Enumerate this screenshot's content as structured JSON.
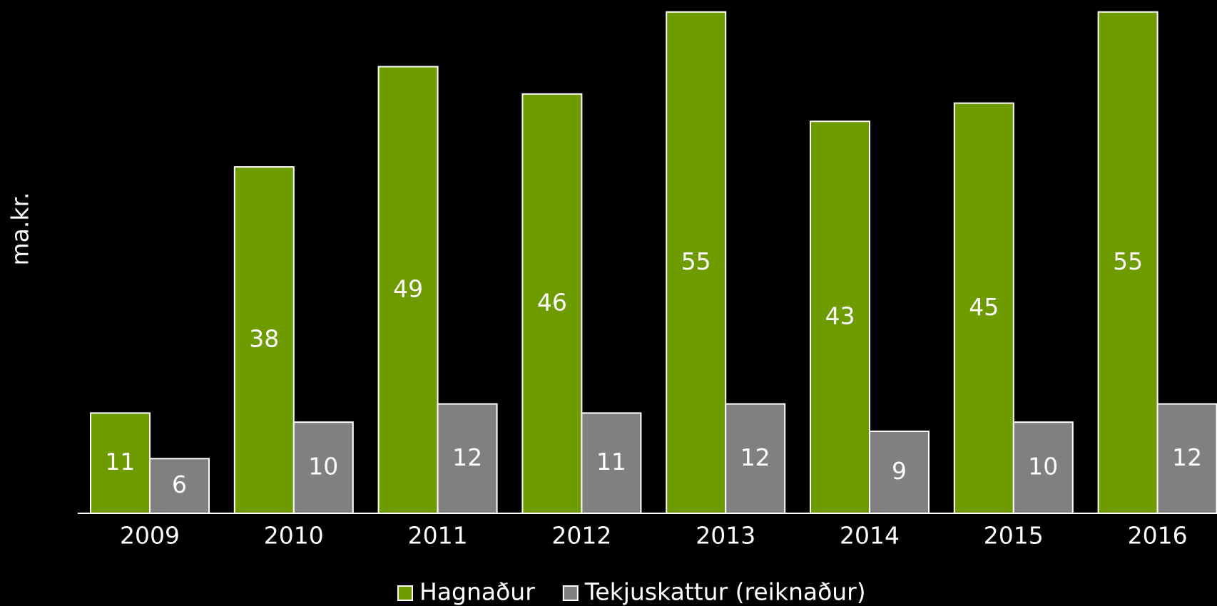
{
  "chart_data": {
    "type": "bar",
    "y_label": "ma.kr.",
    "categories": [
      "2009",
      "2010",
      "2011",
      "2012",
      "2013",
      "2014",
      "2015",
      "2016"
    ],
    "series": [
      {
        "name": "Hagnaður",
        "color": "#6d9b00",
        "values": [
          11,
          38,
          49,
          46,
          55,
          43,
          45,
          55
        ]
      },
      {
        "name": "Tekjuskattur (reiknaður)",
        "color": "#808080",
        "values": [
          6,
          10,
          12,
          11,
          12,
          9,
          10,
          12
        ]
      }
    ],
    "ylim": [
      0,
      56
    ],
    "legend": "bottom"
  }
}
